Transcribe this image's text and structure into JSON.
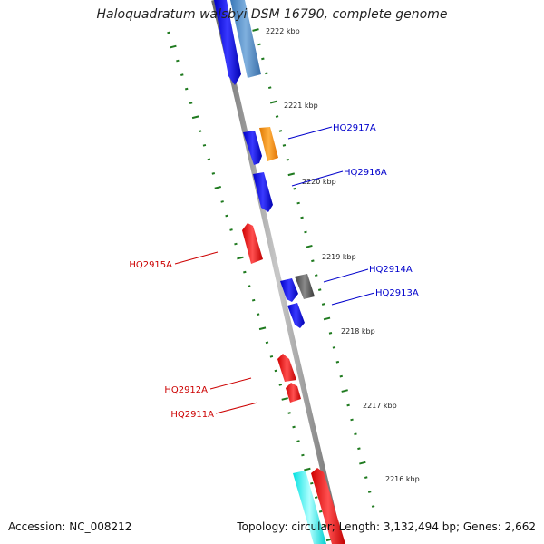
{
  "title": "Haloquadratum walsbyi DSM 16790, complete genome",
  "footer": {
    "accession": "Accession: NC_008212",
    "summary": "Topology: circular; Length: 3,132,494 bp; Genes: 2,662"
  },
  "colors": {
    "backbone": "#888888",
    "tick": "#1f7a1f",
    "gene_blue": "#1a1ae0",
    "gene_steelblue": "#4a86c0",
    "gene_orange": "#ff8c00",
    "gene_red": "#e81818",
    "gene_gray": "#555555",
    "gene_cyan": "#19f0f0",
    "label_blue": "#0000cc",
    "label_red": "#cc0000"
  },
  "scale_ticks": [
    {
      "text": "2222 kbp"
    },
    {
      "text": "2221 kbp"
    },
    {
      "text": "2220 kbp"
    },
    {
      "text": "2219 kbp"
    },
    {
      "text": "2218 kbp"
    },
    {
      "text": "2217 kbp"
    },
    {
      "text": "2216 kbp"
    }
  ],
  "gene_labels": [
    {
      "text": "HQ2917A",
      "color": "blue"
    },
    {
      "text": "HQ2916A",
      "color": "blue"
    },
    {
      "text": "HQ2914A",
      "color": "blue"
    },
    {
      "text": "HQ2913A",
      "color": "blue"
    },
    {
      "text": "HQ2915A",
      "color": "red"
    },
    {
      "text": "HQ2912A",
      "color": "red"
    },
    {
      "text": "HQ2911A",
      "color": "red"
    }
  ]
}
